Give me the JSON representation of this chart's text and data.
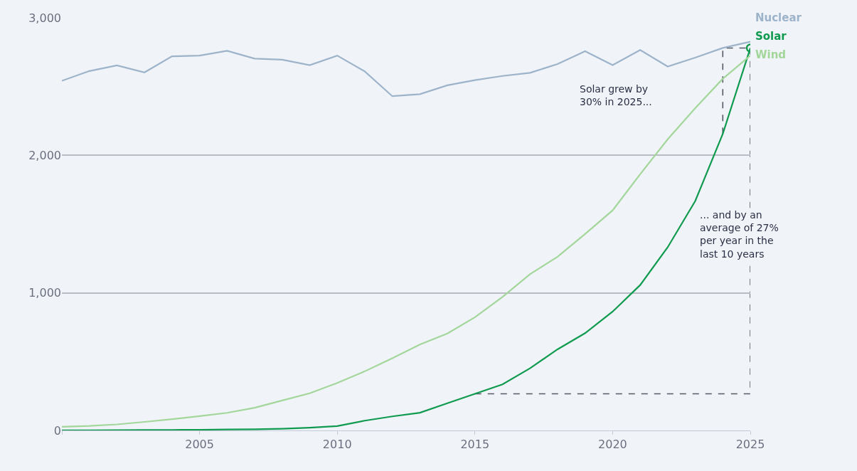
{
  "chart_data": {
    "type": "line",
    "x": [
      2000,
      2001,
      2002,
      2003,
      2004,
      2005,
      2006,
      2007,
      2008,
      2009,
      2010,
      2011,
      2012,
      2013,
      2014,
      2015,
      2016,
      2017,
      2018,
      2019,
      2020,
      2021,
      2022,
      2023,
      2024,
      2025
    ],
    "series": [
      {
        "name": "Nuclear",
        "color": "#9db3ca",
        "values": [
          2542,
          2613,
          2654,
          2603,
          2720,
          2725,
          2760,
          2703,
          2695,
          2656,
          2725,
          2610,
          2430,
          2445,
          2509,
          2547,
          2577,
          2600,
          2664,
          2757,
          2656,
          2766,
          2646,
          2710,
          2781,
          2826
        ]
      },
      {
        "name": "Solar",
        "color": "#0f9a4f",
        "values": [
          1,
          1,
          2,
          3,
          4,
          5,
          7,
          8,
          12,
          20,
          32,
          71,
          102,
          129,
          198,
          266,
          335,
          452,
          590,
          707,
          864,
          1057,
          1332,
          1668,
          2156,
          2780
        ]
      },
      {
        "name": "Wind",
        "color": "#a3d69a",
        "values": [
          27,
          33,
          44,
          62,
          82,
          104,
          128,
          165,
          218,
          270,
          345,
          430,
          525,
          625,
          705,
          823,
          971,
          1136,
          1263,
          1428,
          1600,
          1863,
          2117,
          2343,
          2557,
          2725
        ]
      }
    ],
    "xlim": [
      2000,
      2025
    ],
    "xticks": [
      {
        "value": 2000,
        "label": null
      },
      2005,
      2010,
      2015,
      2020,
      2025
    ],
    "ylim": [
      0,
      3000
    ],
    "yticks": [
      0,
      {
        "value": 1000,
        "label": "1,000"
      },
      {
        "value": 2000,
        "label": "2,000"
      },
      {
        "value": 3000,
        "label": "3,000"
      }
    ],
    "grid": "y",
    "annotations": [
      "Solar grew by\n30% in 2025...",
      "... and by an\naverage of 27%\nper year in the\nlast 10 years"
    ]
  }
}
